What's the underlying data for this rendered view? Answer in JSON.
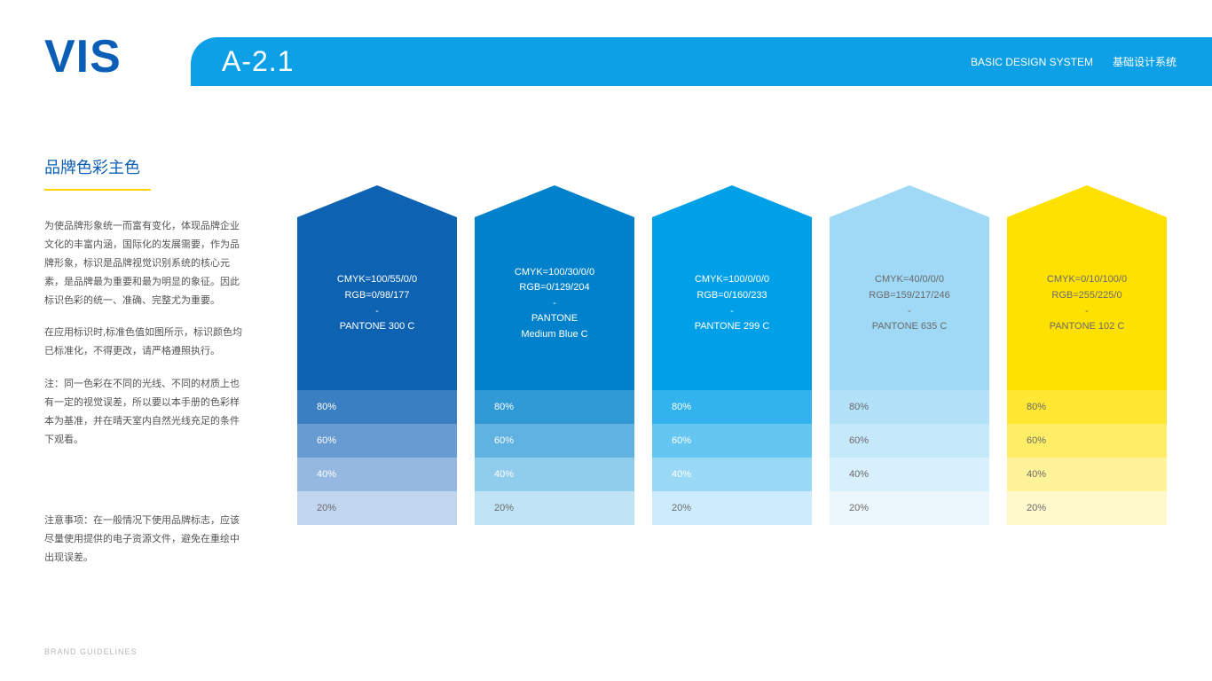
{
  "logo": "VIS",
  "header": {
    "code": "A-2.1",
    "system_en": "BASIC DESIGN SYSTEM",
    "system_zh": "基础设计系统",
    "bar_color": "#0ea0e6"
  },
  "sidebar": {
    "title": "品牌色彩主色",
    "paragraphs": [
      "为使品牌形象统一而富有变化，体现品牌企业文化的丰富内涵，国际化的发展需要，作为品牌形象，标识是品牌视觉识别系统的核心元素，是品牌最为重要和最为明显的象征。因此标识色彩的统一、准确、完整尤为重要。",
      "在应用标识时,标准色值如图所示，标识颜色均已标准化，不得更改，请严格遵照执行。",
      "注：同一色彩在不同的光线、不同的材质上也有一定的视觉误差，所以要以本手册的色彩样本为基准，并在晴天室内自然光线充足的条件下观看。"
    ],
    "caution": "注意事项：在一般情况下使用品牌标志，应该尽量使用提供的电子资源文件，避免在重绘中出现误差。",
    "accent_underline": "#ffd200"
  },
  "swatches": [
    {
      "cmyk": "CMYK=100/55/0/0",
      "rgb": "RGB=0/98/177",
      "dash": "-",
      "pantone": "PANTONE 300 C",
      "pantone2": "",
      "base_color": "#0d63b2",
      "text_color": "#ffffff",
      "tints": [
        {
          "label": "80%",
          "color": "#3a7fc1",
          "text": "#ffffff"
        },
        {
          "label": "60%",
          "color": "#679bd1",
          "text": "#ffffff"
        },
        {
          "label": "40%",
          "color": "#94b8e0",
          "text": "#ffffff"
        },
        {
          "label": "20%",
          "color": "#c2d5ef",
          "text": "#6a6a6a"
        }
      ]
    },
    {
      "cmyk": "CMYK=100/30/0/0",
      "rgb": "RGB=0/129/204",
      "dash": "-",
      "pantone": "PANTONE",
      "pantone2": "Medium Blue C",
      "base_color": "#0081cc",
      "text_color": "#ffffff",
      "tints": [
        {
          "label": "80%",
          "color": "#309ad6",
          "text": "#ffffff"
        },
        {
          "label": "60%",
          "color": "#60b3e1",
          "text": "#ffffff"
        },
        {
          "label": "40%",
          "color": "#90cceb",
          "text": "#ffffff"
        },
        {
          "label": "20%",
          "color": "#c0e4f5",
          "text": "#6a6a6a"
        }
      ]
    },
    {
      "cmyk": "CMYK=100/0/0/0",
      "rgb": "RGB=0/160/233",
      "dash": "-",
      "pantone": "PANTONE 299 C",
      "pantone2": "",
      "base_color": "#00a0e9",
      "text_color": "#ffffff",
      "tints": [
        {
          "label": "80%",
          "color": "#33b3ed",
          "text": "#ffffff"
        },
        {
          "label": "60%",
          "color": "#66c6f2",
          "text": "#ffffff"
        },
        {
          "label": "40%",
          "color": "#99d9f6",
          "text": "#ffffff"
        },
        {
          "label": "20%",
          "color": "#ccecfb",
          "text": "#6a6a6a"
        }
      ]
    },
    {
      "cmyk": "CMYK=40/0/0/0",
      "rgb": "RGB=159/217/246",
      "dash": "-",
      "pantone": "PANTONE 635 C",
      "pantone2": "",
      "base_color": "#9fd9f6",
      "text_color": "#6a6a6a",
      "tints": [
        {
          "label": "80%",
          "color": "#b2e1f8",
          "text": "#6a6a6a"
        },
        {
          "label": "60%",
          "color": "#c5e8fa",
          "text": "#6a6a6a"
        },
        {
          "label": "40%",
          "color": "#d8f0fb",
          "text": "#6a6a6a"
        },
        {
          "label": "20%",
          "color": "#ecf7fd",
          "text": "#6a6a6a"
        }
      ]
    },
    {
      "cmyk": "CMYK=0/10/100/0",
      "rgb": "RGB=255/225/0",
      "dash": "-",
      "pantone": "PANTONE 102 C",
      "pantone2": "",
      "base_color": "#ffe100",
      "text_color": "#6a6a6a",
      "tints": [
        {
          "label": "80%",
          "color": "#ffe733",
          "text": "#6a6a6a"
        },
        {
          "label": "60%",
          "color": "#ffed66",
          "text": "#6a6a6a"
        },
        {
          "label": "40%",
          "color": "#fff399",
          "text": "#6a6a6a"
        },
        {
          "label": "20%",
          "color": "#fff9cc",
          "text": "#6a6a6a"
        }
      ]
    }
  ],
  "footer": "BRAND GUIDELINES"
}
